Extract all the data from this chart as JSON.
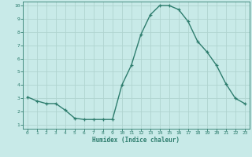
{
  "x": [
    0,
    1,
    2,
    3,
    4,
    5,
    6,
    7,
    8,
    9,
    10,
    11,
    12,
    13,
    14,
    15,
    16,
    17,
    18,
    19,
    20,
    21,
    22,
    23
  ],
  "y": [
    3.1,
    2.8,
    2.6,
    2.6,
    2.1,
    1.5,
    1.4,
    1.4,
    1.4,
    1.4,
    4.0,
    5.5,
    7.8,
    9.3,
    10.0,
    10.0,
    9.7,
    8.8,
    7.3,
    6.5,
    5.5,
    4.1,
    3.0,
    2.6
  ],
  "xlabel": "Humidex (Indice chaleur)",
  "ylim": [
    1,
    10
  ],
  "xlim": [
    0,
    23
  ],
  "yticks": [
    1,
    2,
    3,
    4,
    5,
    6,
    7,
    8,
    9,
    10
  ],
  "xticks": [
    0,
    1,
    2,
    3,
    4,
    5,
    6,
    7,
    8,
    9,
    10,
    11,
    12,
    13,
    14,
    15,
    16,
    17,
    18,
    19,
    20,
    21,
    22,
    23
  ],
  "line_color": "#2e7d6e",
  "marker": "+",
  "bg_color": "#c8eae8",
  "grid_color": "#b0d4d0",
  "axis_color": "#2e7d6e",
  "tick_label_color": "#2e7d6e",
  "xlabel_color": "#2e7d6e",
  "font_family": "monospace"
}
